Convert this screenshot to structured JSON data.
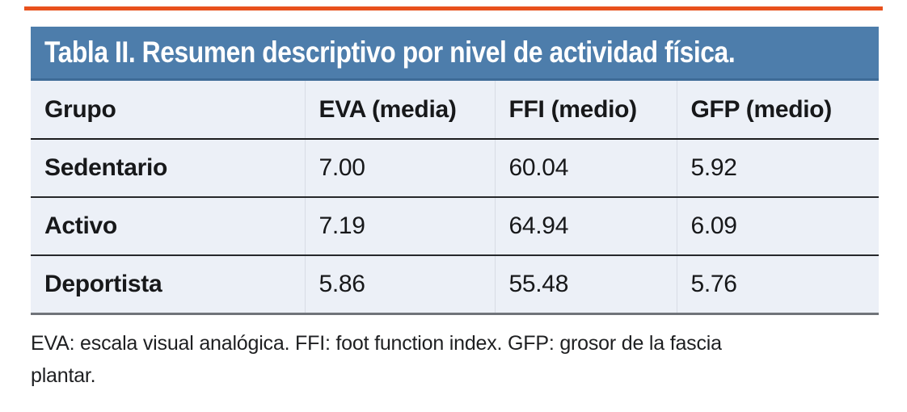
{
  "theme": {
    "top_rule": "#e8511d",
    "header_bg": "#4d7dab",
    "header_bg_dark": "#3e6b97",
    "row_bg": "#ecf0f7",
    "header_border": "#1b1c1e",
    "row_border": "#26282b",
    "bottom_border": "#70747a",
    "column_divider": "#d8dce5",
    "title_color": "#ffffff",
    "text_color": "#17181a"
  },
  "table": {
    "title": "Tabla II. Resumen descriptivo por nivel de actividad física.",
    "columns": [
      "Grupo",
      "EVA (media)",
      "FFI (medio)",
      "GFP (medio)"
    ],
    "rows": [
      [
        "Sedentario",
        "7.00",
        "60.04",
        "5.92"
      ],
      [
        "Activo",
        "7.19",
        "64.94",
        "6.09"
      ],
      [
        "Deportista",
        "5.86",
        "55.48",
        "5.76"
      ]
    ],
    "footnote": "EVA: escala visual analógica. FFI: foot function index. GFP: grosor de la fascia\nplantar."
  },
  "chart_data": {
    "type": "table",
    "title": "Tabla II. Resumen descriptivo por nivel de actividad física.",
    "columns": [
      "Grupo",
      "EVA (media)",
      "FFI (medio)",
      "GFP (medio)"
    ],
    "rows": [
      {
        "Grupo": "Sedentario",
        "EVA_media": 7.0,
        "FFI_medio": 60.04,
        "GFP_medio": 5.92
      },
      {
        "Grupo": "Activo",
        "EVA_media": 7.19,
        "FFI_medio": 64.94,
        "GFP_medio": 6.09
      },
      {
        "Grupo": "Deportista",
        "EVA_media": 5.86,
        "FFI_medio": 55.48,
        "GFP_medio": 5.76
      }
    ]
  }
}
